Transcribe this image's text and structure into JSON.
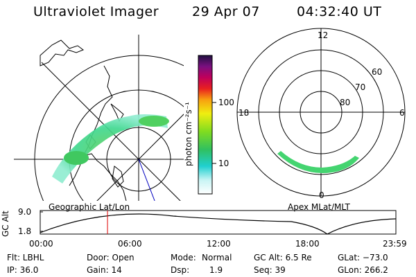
{
  "header": {
    "instrument": "Ultraviolet Imager",
    "date": "29 Apr 07",
    "time": "04:32:40 UT"
  },
  "geo_panel": {
    "label": "Geographic Lat/Lon"
  },
  "apex_panel": {
    "label": "Apex MLat/MLT",
    "mlt_labels": {
      "top": "12",
      "left": "18",
      "right": "6",
      "bottom": "0"
    },
    "lat_labels": [
      "60",
      "70",
      "80"
    ]
  },
  "colorbar": {
    "unit": "photon cm⁻²s⁻¹",
    "ticks": [
      "100",
      "10"
    ]
  },
  "gc_alt_plot": {
    "ylabel": "GC Alt",
    "y_ticks": [
      "9.0",
      "1.8"
    ],
    "x_ticks": [
      "00:00",
      "06:00",
      "12:00",
      "18:00",
      "23:59"
    ],
    "marker_hour": 4.54
  },
  "info": {
    "flt": "Flt: LBHL",
    "ip": "IP: 36.0",
    "door": "Door: Open",
    "gain": "Gain: 14",
    "mode_label": "Mode:",
    "mode_value": "Normal",
    "dsp_label": "Dsp:",
    "dsp_value": "1.9",
    "gc_alt": "GC Alt: 6.5 Re",
    "seq": "Seq: 39",
    "glat": "GLat: −73.0",
    "glon": "GLon: 266.2"
  },
  "colors": {
    "marker": "#e00000",
    "mlt_line": "#0000c0"
  }
}
